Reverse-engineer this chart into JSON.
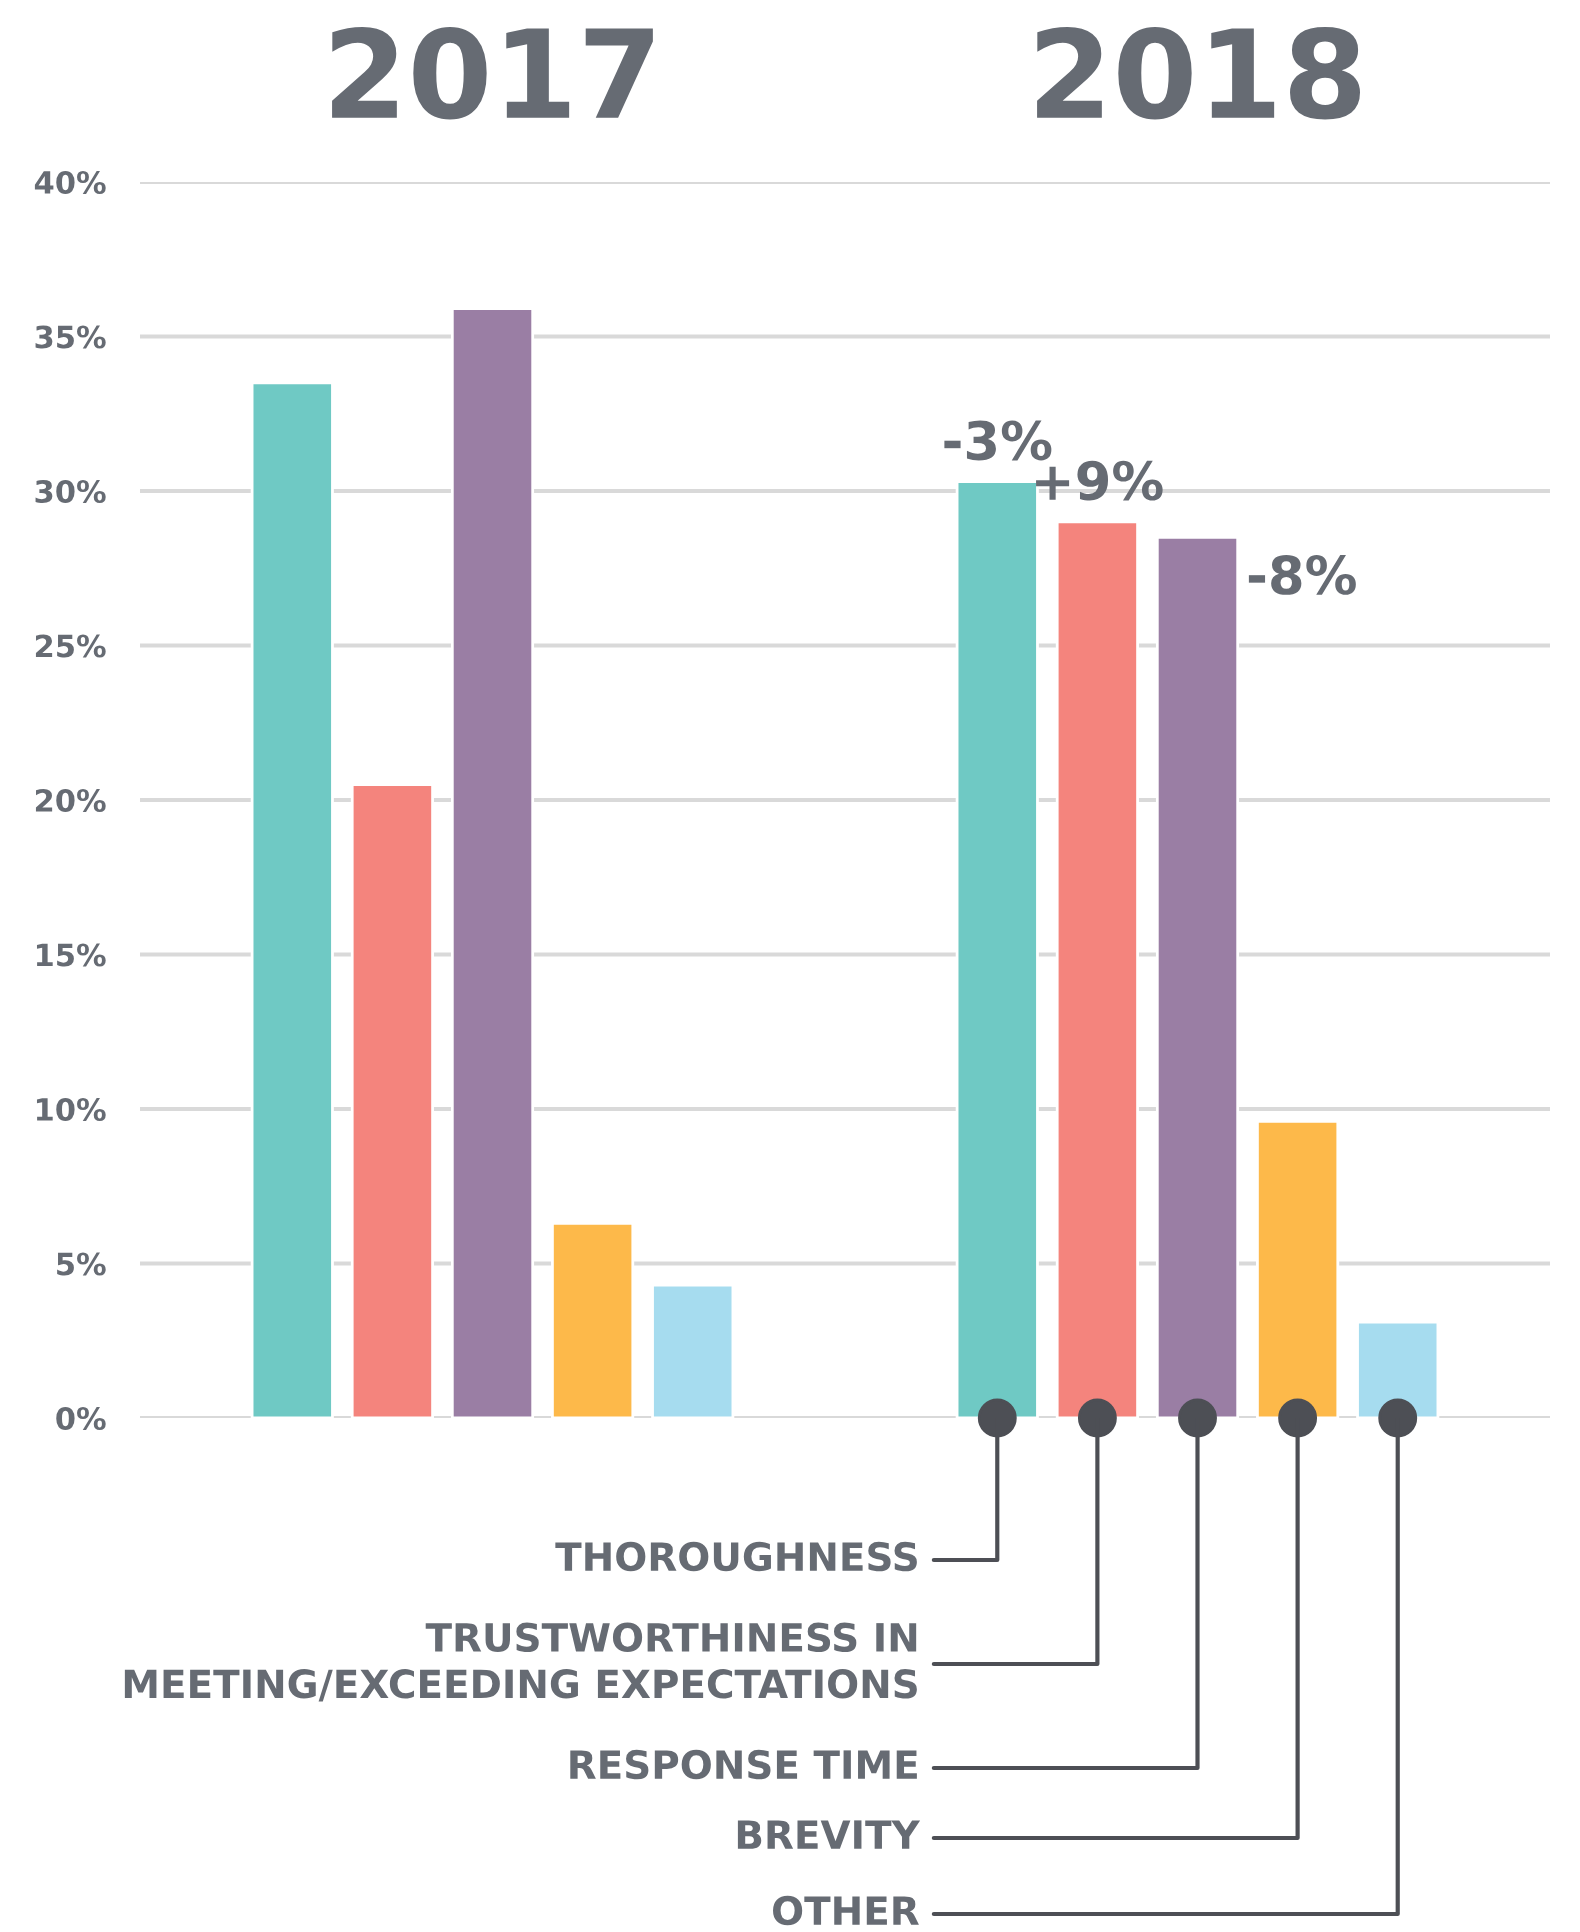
{
  "chart_data": {
    "type": "bar",
    "categories": [
      "2017",
      "2018"
    ],
    "series": [
      {
        "name": "THOROUGHNESS",
        "color": "#6fc9c4",
        "values": [
          33.5,
          30.3
        ]
      },
      {
        "name": "TRUSTWORTHINESS IN\nMEETING/EXCEEDING EXPECTATIONS",
        "color": "#f4847d",
        "values": [
          20.5,
          29.0
        ]
      },
      {
        "name": "RESPONSE TIME",
        "color": "#9a7ea4",
        "values": [
          35.9,
          28.5
        ]
      },
      {
        "name": "BREVITY",
        "color": "#fdb94a",
        "values": [
          6.3,
          9.6
        ]
      },
      {
        "name": "OTHER",
        "color": "#a6dcef",
        "values": [
          4.3,
          3.1
        ]
      }
    ],
    "ylim": [
      0,
      40
    ],
    "yticks": [
      {
        "value": 0,
        "label": "0%"
      },
      {
        "value": 5,
        "label": "5%"
      },
      {
        "value": 10,
        "label": "10%"
      },
      {
        "value": 15,
        "label": "15%"
      },
      {
        "value": 20,
        "label": "20%"
      },
      {
        "value": 25,
        "label": "25%"
      },
      {
        "value": 30,
        "label": "30%"
      },
      {
        "value": 35,
        "label": "35%"
      },
      {
        "value": 40,
        "label": "40%"
      }
    ],
    "grid": "y",
    "legend": "bottom",
    "annotations": [
      "-3%",
      "+9%",
      "-8%"
    ]
  }
}
